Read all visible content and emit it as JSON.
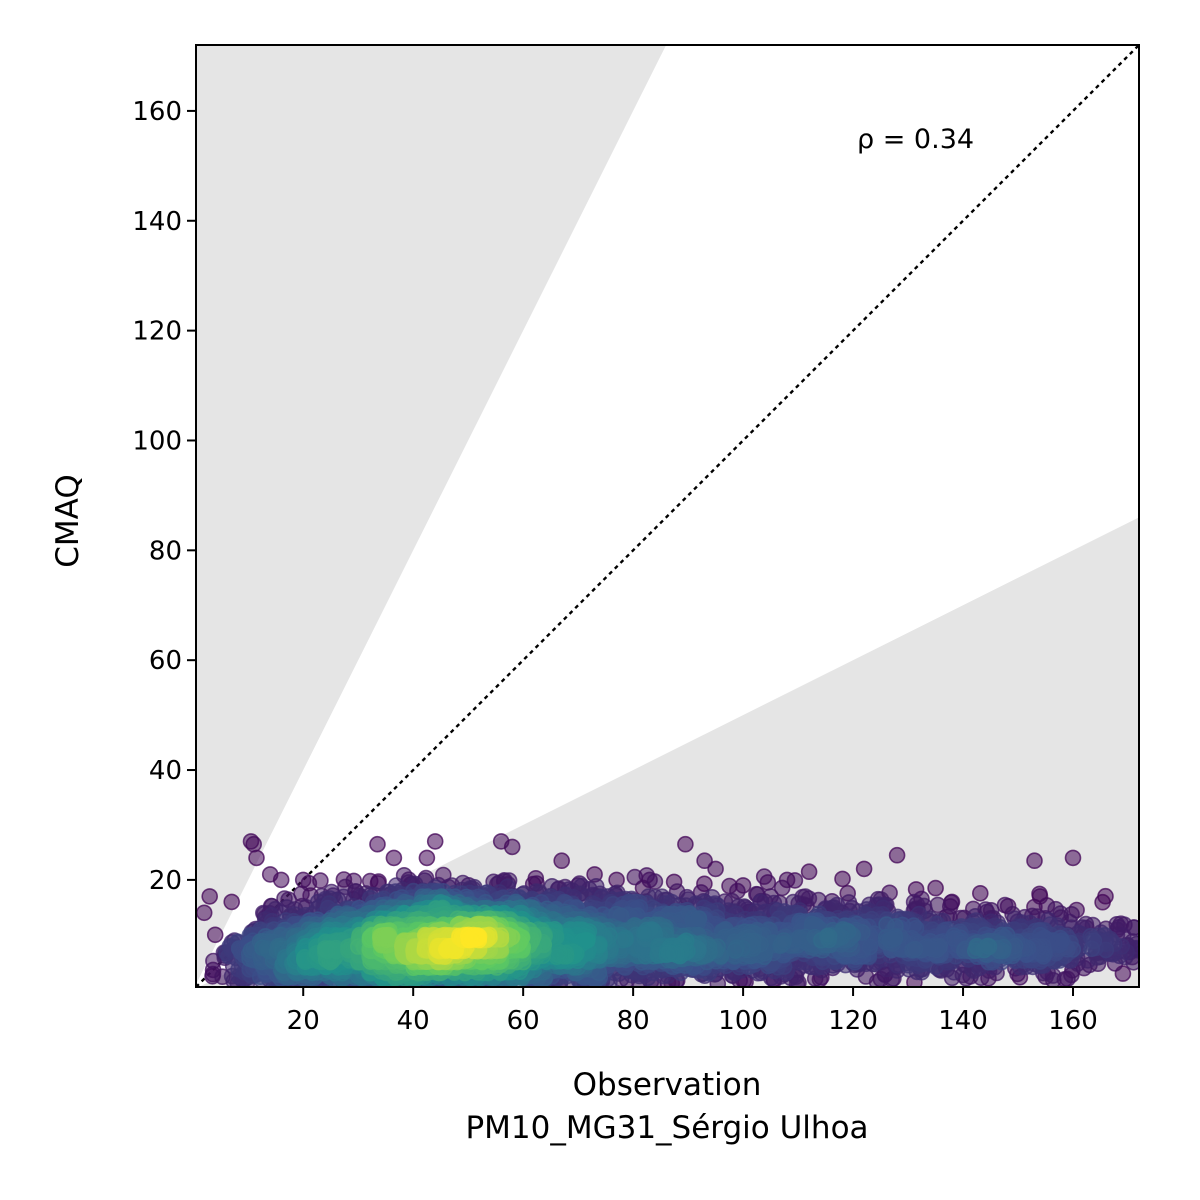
{
  "chart_data": {
    "type": "scatter",
    "title": "",
    "xlabel": "Observation",
    "xlabel_sub": "PM10_MG31_Sérgio Ulhoa",
    "ylabel": "CMAQ",
    "xlim": [
      0.5,
      172
    ],
    "ylim": [
      0.5,
      172
    ],
    "xticks": [
      20,
      40,
      60,
      80,
      100,
      120,
      140,
      160
    ],
    "yticks": [
      20,
      40,
      60,
      80,
      100,
      120,
      140,
      160
    ],
    "grid": false,
    "annotation": {
      "text": "ρ = 0.34",
      "x": 120,
      "y": 153
    },
    "reference_line": {
      "style": "dotted",
      "color": "#000000",
      "slope": 1
    },
    "shaded_band_slopes": [
      0.5,
      2
    ],
    "shade_color": "#e5e5e5",
    "colormap": "viridis",
    "marker_alpha": 0.55,
    "colors": {
      "low_density": "#440154",
      "mid_density": "#21918c",
      "high_density": "#fde725"
    },
    "notable_points": [
      {
        "x": 10.5,
        "y": 27
      },
      {
        "x": 11,
        "y": 26.5
      },
      {
        "x": 11.5,
        "y": 24
      },
      {
        "x": 33.5,
        "y": 26.5
      },
      {
        "x": 36.5,
        "y": 24
      },
      {
        "x": 42.5,
        "y": 24
      },
      {
        "x": 44,
        "y": 27
      },
      {
        "x": 56,
        "y": 27
      },
      {
        "x": 58,
        "y": 26
      },
      {
        "x": 67,
        "y": 23.5
      },
      {
        "x": 89.5,
        "y": 26.5
      },
      {
        "x": 93,
        "y": 23.5
      },
      {
        "x": 95,
        "y": 22
      },
      {
        "x": 100,
        "y": 19
      },
      {
        "x": 112,
        "y": 21.5
      },
      {
        "x": 116.5,
        "y": 15
      },
      {
        "x": 122,
        "y": 22
      },
      {
        "x": 128,
        "y": 24.5
      },
      {
        "x": 135,
        "y": 18.5
      },
      {
        "x": 138,
        "y": 16
      },
      {
        "x": 153,
        "y": 23.5
      },
      {
        "x": 154,
        "y": 17
      },
      {
        "x": 160,
        "y": 24
      },
      {
        "x": 155,
        "y": 13
      },
      {
        "x": 170,
        "y": 8
      },
      {
        "x": 165,
        "y": 6
      },
      {
        "x": 171,
        "y": 5
      },
      {
        "x": 143,
        "y": 4
      },
      {
        "x": 136,
        "y": 3.5
      },
      {
        "x": 128,
        "y": 3.5
      },
      {
        "x": 2,
        "y": 14
      },
      {
        "x": 3,
        "y": 17
      },
      {
        "x": 4,
        "y": 10
      },
      {
        "x": 7,
        "y": 16
      },
      {
        "x": 14,
        "y": 21
      },
      {
        "x": 16,
        "y": 20
      },
      {
        "x": 20,
        "y": 20
      },
      {
        "x": 145,
        "y": 13
      },
      {
        "x": 150,
        "y": 11
      },
      {
        "x": 162,
        "y": 10
      },
      {
        "x": 168,
        "y": 10
      },
      {
        "x": 118,
        "y": 14
      },
      {
        "x": 105,
        "y": 17
      },
      {
        "x": 108,
        "y": 20
      },
      {
        "x": 83,
        "y": 20
      },
      {
        "x": 77,
        "y": 20
      },
      {
        "x": 73,
        "y": 21
      },
      {
        "x": 70,
        "y": 19
      }
    ],
    "density_clusters": [
      {
        "cx": 45,
        "cy": 8,
        "sx": 14,
        "sy": 4.5,
        "n": 3600
      },
      {
        "cx": 75,
        "cy": 9,
        "sx": 22,
        "sy": 4.5,
        "n": 1600
      },
      {
        "cx": 115,
        "cy": 9,
        "sx": 22,
        "sy": 3.5,
        "n": 900
      },
      {
        "cx": 152,
        "cy": 8,
        "sx": 12,
        "sy": 2.5,
        "n": 350
      },
      {
        "cx": 20,
        "cy": 6,
        "sx": 8,
        "sy": 4,
        "n": 500
      }
    ]
  }
}
